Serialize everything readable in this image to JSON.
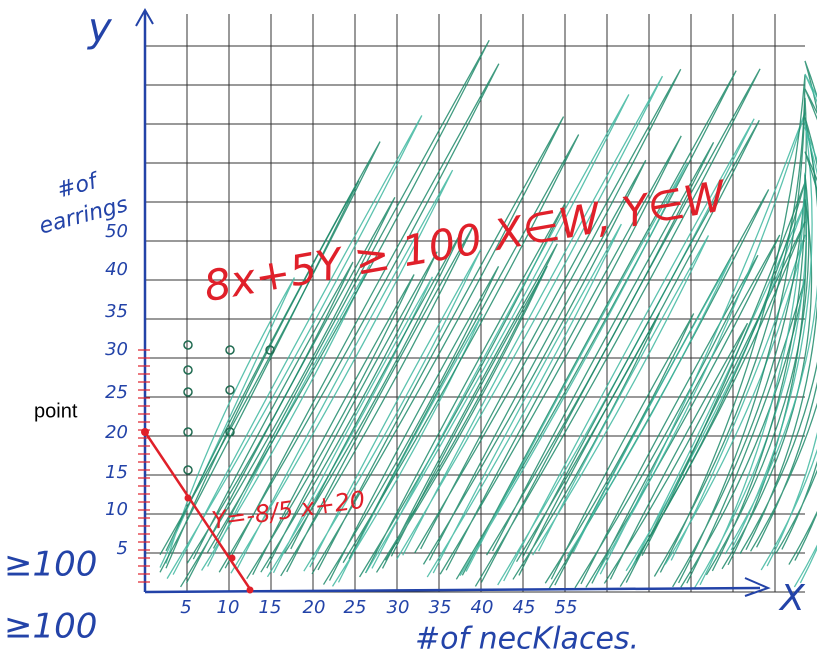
{
  "axes": {
    "y_label": "y",
    "x_label": "X",
    "y_title": [
      "#of",
      "earrings"
    ],
    "x_title": "#of necKlaces."
  },
  "x_tick_labels": [
    "5",
    "10",
    "15",
    "20",
    "25",
    "30",
    "35",
    "40",
    "45",
    "55"
  ],
  "y_tick_labels": [
    "5",
    "10",
    "15",
    "20",
    "25",
    "30",
    "35",
    "40",
    "50"
  ],
  "inequality": "8x+5Y ≥ 100  X∈W, Y∈W",
  "line_equation": "Y=-8/5 x+20",
  "side_notes": [
    "point",
    "≥100",
    "≥100"
  ]
}
